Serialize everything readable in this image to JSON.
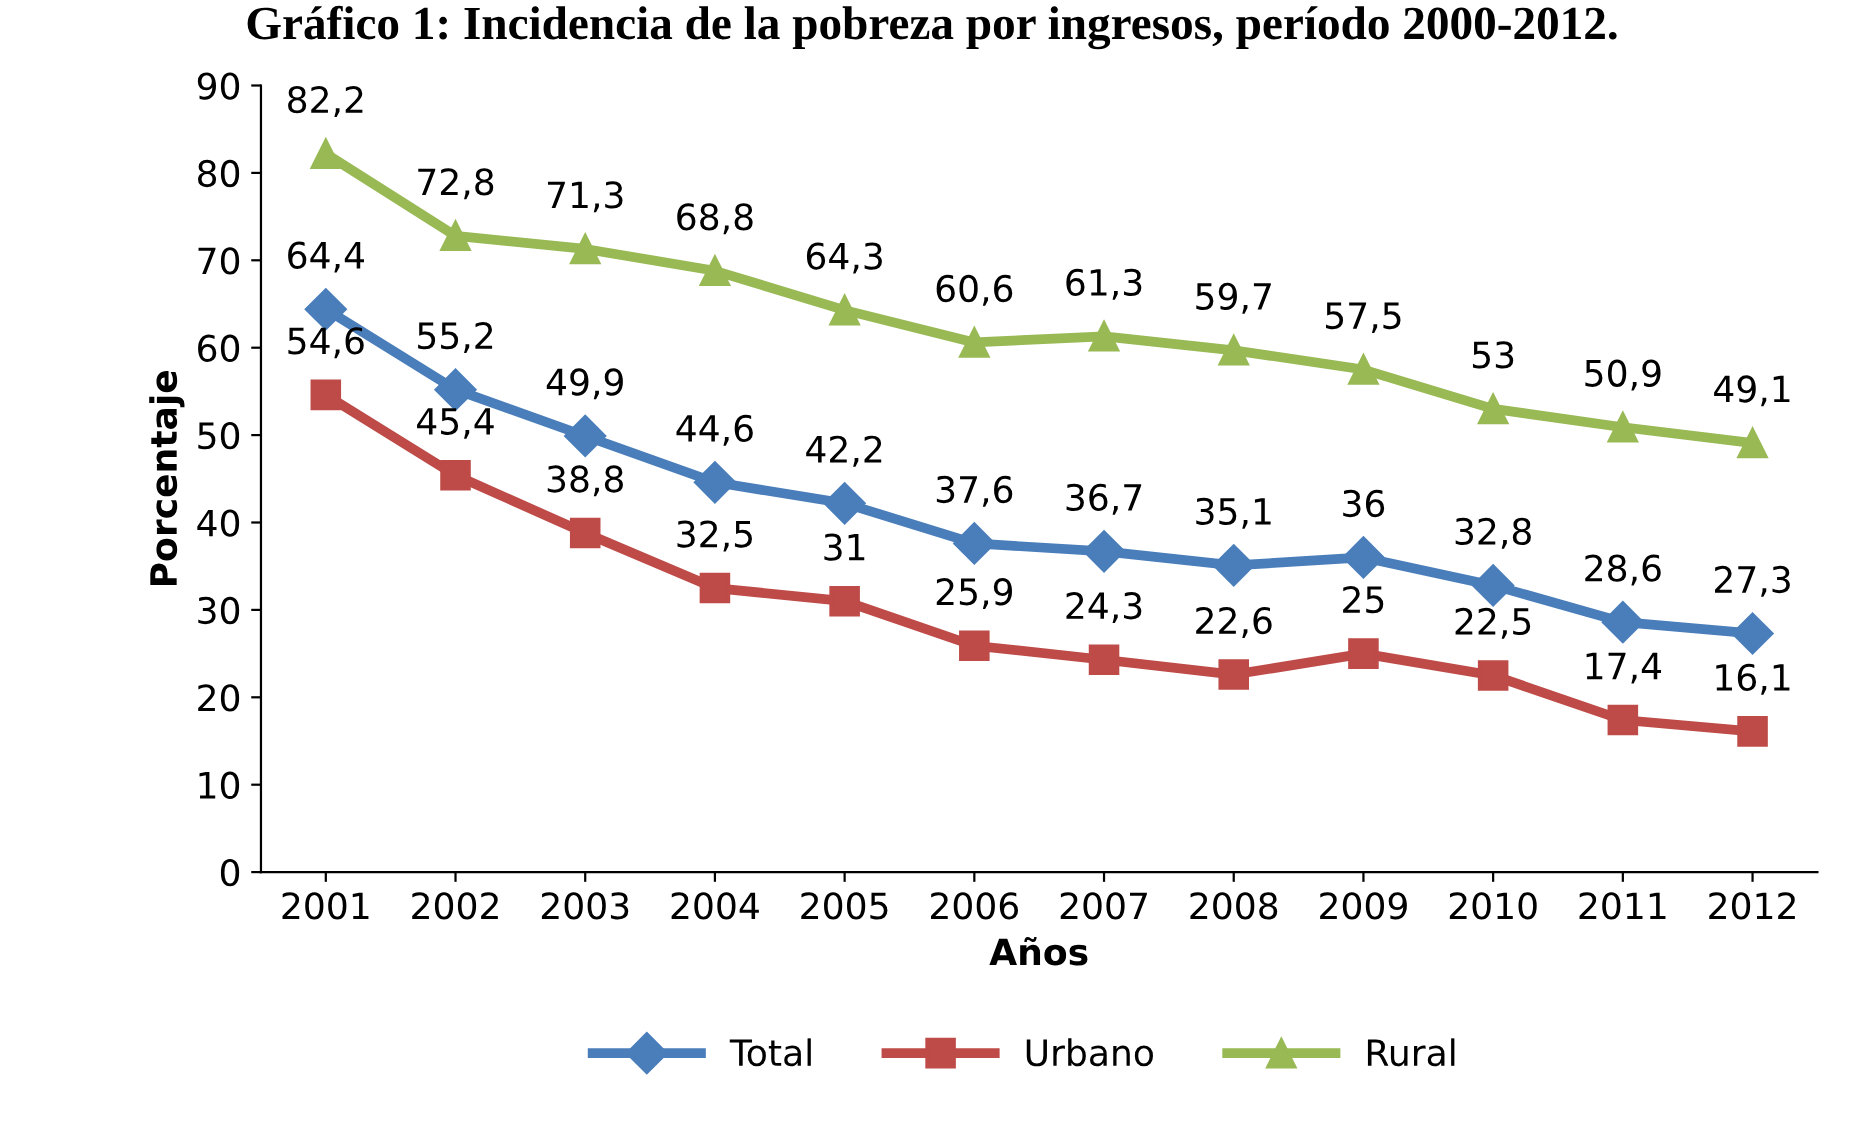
{
  "chart_data": {
    "type": "line",
    "title": "Gráfico 1: Incidencia de la pobreza por ingresos, período 2000-2012.",
    "xlabel": "Años",
    "ylabel": "Porcentaje",
    "categories": [
      "2001",
      "2002",
      "2003",
      "2004",
      "2005",
      "2006",
      "2007",
      "2008",
      "2009",
      "2010",
      "2011",
      "2012"
    ],
    "series": [
      {
        "name": "Total",
        "color": "#4a7ebb",
        "marker": "diamond",
        "values": [
          64.4,
          55.2,
          49.9,
          44.6,
          42.2,
          37.6,
          36.7,
          35.1,
          36,
          32.8,
          28.6,
          27.3
        ],
        "value_labels": [
          "64,4",
          "55,2",
          "49,9",
          "44,6",
          "42,2",
          "37,6",
          "36,7",
          "35,1",
          "36",
          "32,8",
          "28,6",
          "27,3"
        ]
      },
      {
        "name": "Urbano",
        "color": "#be4b48",
        "marker": "square",
        "values": [
          54.6,
          45.4,
          38.8,
          32.5,
          31,
          25.9,
          24.3,
          22.6,
          25,
          22.5,
          17.4,
          16.1
        ],
        "value_labels": [
          "54,6",
          "45,4",
          "38,8",
          "32,5",
          "31",
          "25,9",
          "24,3",
          "22,6",
          "25",
          "22,5",
          "17,4",
          "16,1"
        ]
      },
      {
        "name": "Rural",
        "color": "#98b954",
        "marker": "triangle",
        "values": [
          82.2,
          72.8,
          71.3,
          68.8,
          64.3,
          60.6,
          61.3,
          59.7,
          57.5,
          53,
          50.9,
          49.1
        ],
        "value_labels": [
          "82,2",
          "72,8",
          "71,3",
          "68,8",
          "64,3",
          "60,6",
          "61,3",
          "59,7",
          "57,5",
          "53",
          "50,9",
          "49,1"
        ]
      }
    ],
    "ylim": [
      0,
      90
    ],
    "yticks": [
      0,
      10,
      20,
      30,
      40,
      50,
      60,
      70,
      80,
      90
    ],
    "grid": false,
    "legend": "bottom",
    "line_style": "solid"
  }
}
